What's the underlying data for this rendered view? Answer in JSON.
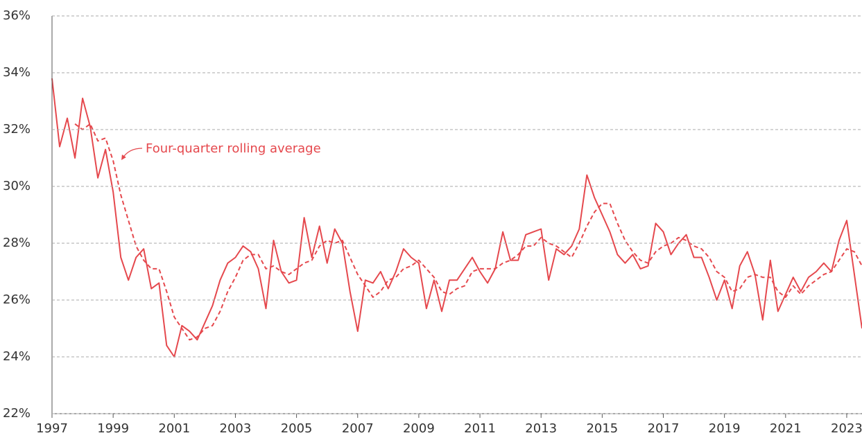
{
  "chart_data": {
    "type": "line",
    "annotation": "Four-quarter rolling average",
    "x": [
      1997,
      1997.25,
      1997.5,
      1997.75,
      1998,
      1998.25,
      1998.5,
      1998.75,
      1999,
      1999.25,
      1999.5,
      1999.75,
      2000,
      2000.25,
      2000.5,
      2000.75,
      2001,
      2001.25,
      2001.5,
      2001.75,
      2002,
      2002.25,
      2002.5,
      2002.75,
      2003,
      2003.25,
      2003.5,
      2003.75,
      2004,
      2004.25,
      2004.5,
      2004.75,
      2005,
      2005.25,
      2005.5,
      2005.75,
      2006,
      2006.25,
      2006.5,
      2006.75,
      2007,
      2007.25,
      2007.5,
      2007.75,
      2008,
      2008.25,
      2008.5,
      2008.75,
      2009,
      2009.25,
      2009.5,
      2009.75,
      2010,
      2010.25,
      2010.5,
      2010.75,
      2011,
      2011.25,
      2011.5,
      2011.75,
      2012,
      2012.25,
      2012.5,
      2012.75,
      2013,
      2013.25,
      2013.5,
      2013.75,
      2014,
      2014.25,
      2014.5,
      2014.75,
      2015,
      2015.25,
      2015.5,
      2015.75,
      2016,
      2016.25,
      2016.5,
      2016.75,
      2017,
      2017.25,
      2017.5,
      2017.75,
      2018,
      2018.25,
      2018.5,
      2018.75,
      2019,
      2019.25,
      2019.5,
      2019.75,
      2020,
      2020.25,
      2020.5,
      2020.75,
      2021,
      2021.25,
      2021.5,
      2021.75,
      2022,
      2022.25,
      2022.5,
      2022.75,
      2023,
      2023.25,
      2023.5
    ],
    "series": [
      {
        "style": "solid",
        "color": "#e5484d",
        "values": [
          33.8,
          31.4,
          32.4,
          31.0,
          33.1,
          32.1,
          30.3,
          31.3,
          29.8,
          27.5,
          26.7,
          27.5,
          27.8,
          26.4,
          26.6,
          24.4,
          24.0,
          25.1,
          24.9,
          24.6,
          25.2,
          25.8,
          26.7,
          27.3,
          27.5,
          27.9,
          27.7,
          27.1,
          25.7,
          28.1,
          27.0,
          26.6,
          26.7,
          28.9,
          27.5,
          28.6,
          27.3,
          28.5,
          28.0,
          26.3,
          24.9,
          26.7,
          26.6,
          27.0,
          26.4,
          27.0,
          27.8,
          27.5,
          27.3,
          25.7,
          26.7,
          25.6,
          26.7,
          26.7,
          27.1,
          27.5,
          27.0,
          26.6,
          27.1,
          28.4,
          27.4,
          27.4,
          28.3,
          28.4,
          28.5,
          26.7,
          27.8,
          27.6,
          27.9,
          28.5,
          30.4,
          29.6,
          29.0,
          28.4,
          27.6,
          27.3,
          27.6,
          27.1,
          27.2,
          28.7,
          28.4,
          27.6,
          28.0,
          28.3,
          27.5,
          27.5,
          26.8,
          26.0,
          26.7,
          25.7,
          27.2,
          27.7,
          26.9,
          25.3,
          27.4,
          25.6,
          26.2,
          26.8,
          26.3,
          26.8,
          27.0,
          27.3,
          27.0,
          28.1,
          28.8,
          26.9,
          25.0
        ]
      },
      {
        "style": "dashed",
        "color": "#e5484d",
        "values": [
          null,
          null,
          null,
          32.2,
          32.0,
          32.2,
          31.6,
          31.7,
          30.9,
          29.7,
          28.8,
          27.9,
          27.4,
          27.1,
          27.1,
          26.3,
          25.4,
          25.0,
          24.6,
          24.7,
          25.0,
          25.1,
          25.6,
          26.3,
          26.8,
          27.4,
          27.6,
          27.6,
          27.1,
          27.2,
          27.0,
          26.9,
          27.1,
          27.3,
          27.4,
          27.9,
          28.1,
          28.0,
          28.1,
          27.5,
          26.9,
          26.5,
          26.1,
          26.3,
          26.7,
          26.8,
          27.1,
          27.2,
          27.4,
          27.1,
          26.8,
          26.3,
          26.2,
          26.4,
          26.5,
          27.0,
          27.1,
          27.1,
          27.1,
          27.3,
          27.4,
          27.6,
          27.9,
          27.9,
          28.2,
          28.0,
          27.9,
          27.7,
          27.5,
          28.0,
          28.6,
          29.1,
          29.4,
          29.4,
          28.7,
          28.1,
          27.7,
          27.4,
          27.3,
          27.7,
          27.9,
          28.0,
          28.2,
          28.1,
          27.9,
          27.8,
          27.5,
          27.0,
          26.8,
          26.3,
          26.4,
          26.8,
          26.9,
          26.8,
          26.8,
          26.3,
          26.1,
          26.5,
          26.2,
          26.5,
          26.7,
          26.9,
          27.0,
          27.4,
          27.8,
          27.7,
          27.2
        ]
      }
    ],
    "xlim": [
      1997,
      2023.5
    ],
    "xticks": [
      1997,
      1999,
      2001,
      2003,
      2005,
      2007,
      2009,
      2011,
      2013,
      2015,
      2017,
      2019,
      2021,
      2023
    ],
    "ylim": [
      22,
      36
    ],
    "yticks": [
      {
        "value": 22,
        "label": "22%"
      },
      {
        "value": 24,
        "label": "24%"
      },
      {
        "value": 26,
        "label": "26%"
      },
      {
        "value": 28,
        "label": "28%"
      },
      {
        "value": 30,
        "label": "30%"
      },
      {
        "value": 32,
        "label": "32%"
      },
      {
        "value": 34,
        "label": "34%"
      },
      {
        "value": 36,
        "label": "36%"
      }
    ],
    "grid": true
  }
}
